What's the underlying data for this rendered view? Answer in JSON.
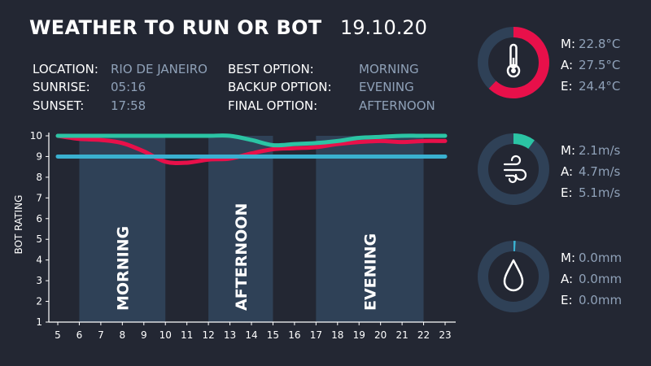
{
  "header": {
    "title": "WEATHER TO RUN OR BOT",
    "date": "19.10.20"
  },
  "info": {
    "location_label": "LOCATION:",
    "location_value": "RIO DE JANEIRO",
    "sunrise_label": "SUNRISE:",
    "sunrise_value": "05:16",
    "sunset_label": "SUNSET:",
    "sunset_value": "17:58",
    "best_label": "BEST OPTION:",
    "best_value": "MORNING",
    "backup_label": "BACKUP OPTION:",
    "backup_value": "EVENING",
    "final_label": "FINAL OPTION:",
    "final_value": "AFTERNOON"
  },
  "colors": {
    "background": "#232733",
    "band": "#2f4157",
    "teal": "#2bc4a4",
    "red": "#e8104a",
    "blue": "#3ab0d0",
    "value_text": "#8fa1b8",
    "ring_track": "#2f4157"
  },
  "chart_data": {
    "type": "line",
    "ylabel": "BOT RATING",
    "xlabel": "",
    "xlim": [
      5,
      23
    ],
    "ylim": [
      1,
      10
    ],
    "x_ticks": [
      "5",
      "6",
      "7",
      "8",
      "9",
      "10",
      "11",
      "12",
      "13",
      "14",
      "15",
      "16",
      "17",
      "18",
      "19",
      "20",
      "21",
      "22",
      "23"
    ],
    "y_ticks": [
      "1",
      "2",
      "3",
      "4",
      "5",
      "6",
      "7",
      "8",
      "9",
      "10"
    ],
    "bands": [
      {
        "label": "MORNING",
        "start": 6,
        "end": 10
      },
      {
        "label": "AFTERNOON",
        "start": 12,
        "end": 15
      },
      {
        "label": "EVENING",
        "start": 17,
        "end": 22
      }
    ],
    "series": [
      {
        "color": "#2bc4a4",
        "x": [
          5,
          6,
          7,
          8,
          9,
          10,
          11,
          12,
          13,
          14,
          15,
          16,
          17,
          18,
          19,
          20,
          21,
          22,
          23
        ],
        "y": [
          10,
          10,
          10,
          10,
          10,
          10,
          10,
          10,
          10,
          9.8,
          9.55,
          9.6,
          9.65,
          9.75,
          9.9,
          9.95,
          10,
          10,
          10
        ]
      },
      {
        "color": "#e8104a",
        "x": [
          5,
          6,
          7,
          8,
          9,
          10,
          11,
          12,
          13,
          14,
          15,
          16,
          17,
          18,
          19,
          20,
          21,
          22,
          23
        ],
        "y": [
          10,
          9.85,
          9.8,
          9.65,
          9.25,
          8.75,
          8.7,
          8.85,
          8.9,
          9.15,
          9.35,
          9.4,
          9.45,
          9.6,
          9.7,
          9.75,
          9.7,
          9.75,
          9.75
        ]
      },
      {
        "color": "#3ab0d0",
        "x": [
          5,
          23
        ],
        "y": [
          9,
          9
        ]
      }
    ]
  },
  "gauges": [
    {
      "icon": "thermometer-icon",
      "fraction": 0.62,
      "color": "#e8104a",
      "m_label": "M:",
      "m_value": "22.8°C",
      "a_label": "A:",
      "a_value": "27.5°C",
      "e_label": "E:",
      "e_value": "24.4°C"
    },
    {
      "icon": "wind-icon",
      "fraction": 0.1,
      "color": "#2bc4a4",
      "m_label": "M:",
      "m_value": "2.1m/s",
      "a_label": "A:",
      "a_value": "4.7m/s",
      "e_label": "E:",
      "e_value": "5.1m/s"
    },
    {
      "icon": "droplet-icon",
      "fraction": 0.01,
      "color": "#3ab0d0",
      "m_label": "M:",
      "m_value": "0.0mm",
      "a_label": "A:",
      "a_value": "0.0mm",
      "e_label": "E:",
      "e_value": "0.0mm"
    }
  ]
}
